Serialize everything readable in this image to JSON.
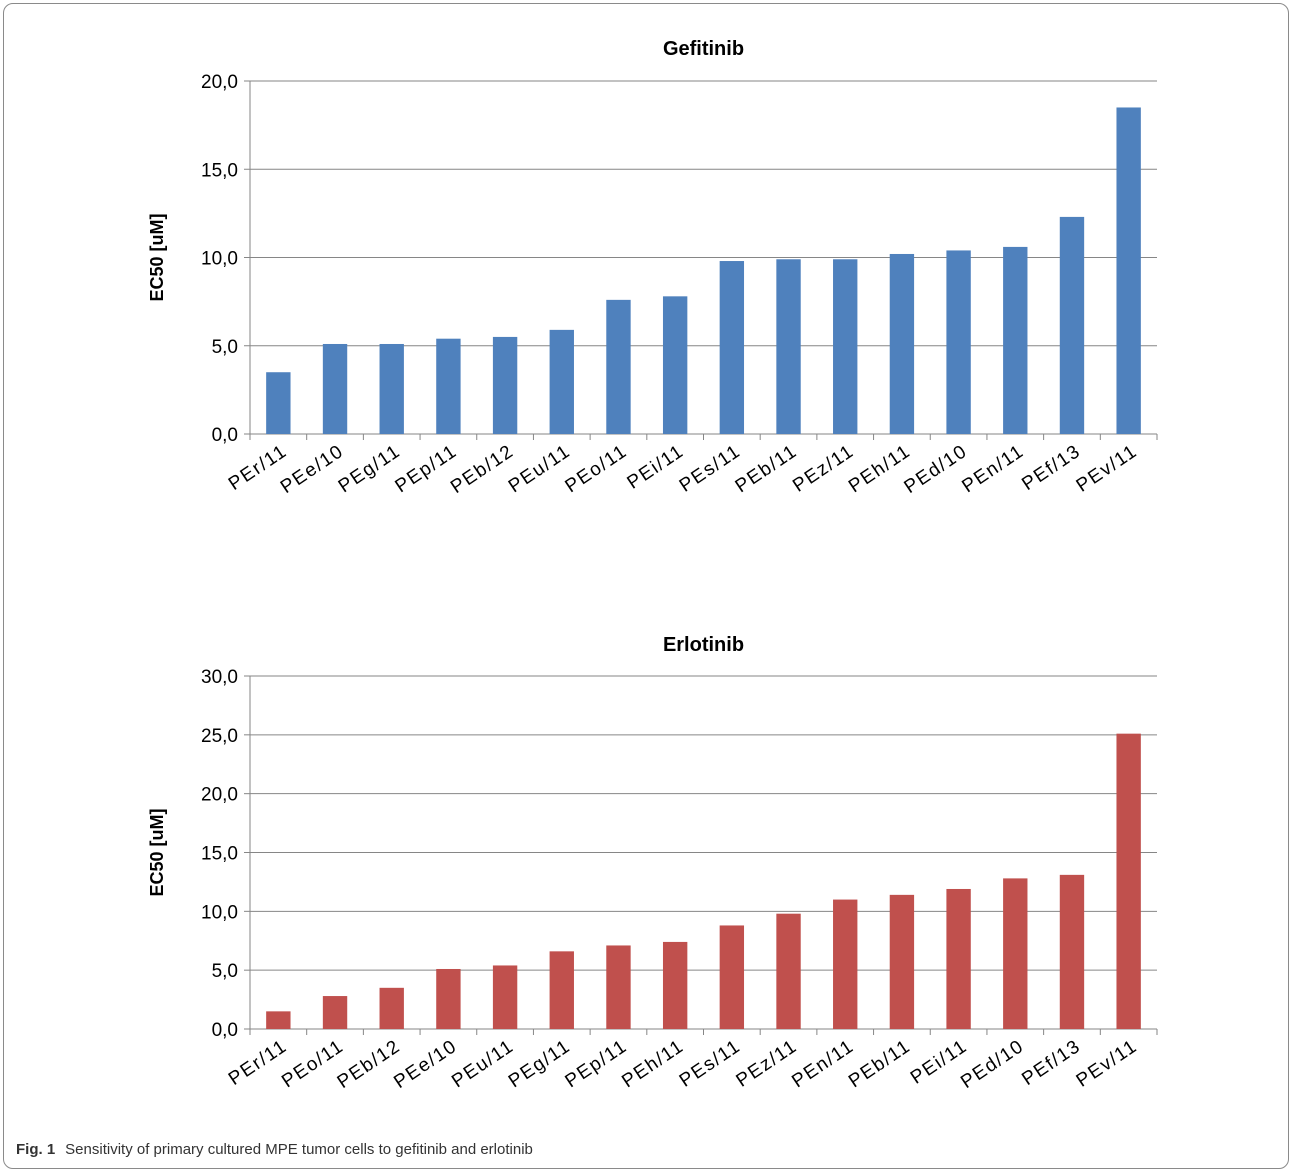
{
  "colors": {
    "gefitinib_bar": "#4f81bd",
    "erlotinib_bar": "#c0504d",
    "axis": "#868686",
    "text": "#000000"
  },
  "caption": {
    "label": "Fig. 1",
    "text": "Sensitivity of primary cultured MPE tumor cells to gefitinib and erlotinib"
  },
  "chart_data": [
    {
      "type": "bar",
      "title": "Gefitinib",
      "xlabel": "",
      "ylabel": "EC50 [uM]",
      "ylim": [
        0,
        20
      ],
      "yticks": [
        "0,0",
        "5,0",
        "10,0",
        "15,0",
        "20,0"
      ],
      "grid": true,
      "categories": [
        "PEr/11",
        "PEe/10",
        "PEg/11",
        "PEp/11",
        "PEb/12",
        "PEu/11",
        "PEo/11",
        "PEi/11",
        "PEs/11",
        "PEb/11",
        "PEz/11",
        "PEh/11",
        "PEd/10",
        "PEn/11",
        "PEf/13",
        "PEv/11"
      ],
      "values": [
        3.5,
        5.1,
        5.1,
        5.4,
        5.5,
        5.9,
        7.6,
        7.8,
        9.8,
        9.9,
        9.9,
        10.2,
        10.4,
        10.6,
        12.3,
        18.5
      ]
    },
    {
      "type": "bar",
      "title": "Erlotinib",
      "xlabel": "",
      "ylabel": "EC50 [uM]",
      "ylim": [
        0,
        30
      ],
      "yticks": [
        "0,0",
        "5,0",
        "10,0",
        "15,0",
        "20,0",
        "25,0",
        "30,0"
      ],
      "grid": true,
      "categories": [
        "PEr/11",
        "PEo/11",
        "PEb/12",
        "PEe/10",
        "PEu/11",
        "PEg/11",
        "PEp/11",
        "PEh/11",
        "PEs/11",
        "PEz/11",
        "PEn/11",
        "PEb/11",
        "PEi/11",
        "PEd/10",
        "PEf/13",
        "PEv/11"
      ],
      "values": [
        1.5,
        2.8,
        3.5,
        5.1,
        5.4,
        6.6,
        7.1,
        7.4,
        8.8,
        9.8,
        11.0,
        11.4,
        11.9,
        12.8,
        13.1,
        25.1
      ]
    }
  ]
}
